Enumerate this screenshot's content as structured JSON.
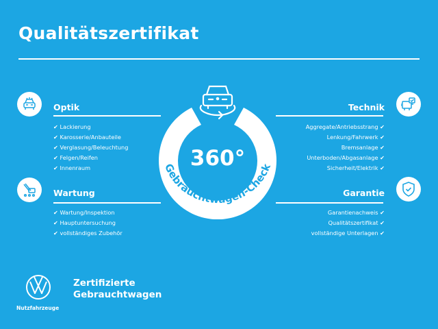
{
  "title": "Qualitätszertifikat",
  "colors": {
    "background": "#1ca6e3",
    "foreground": "#ffffff"
  },
  "badge": {
    "value": "360°",
    "arc_text": "Gebrauchtwagen-Check",
    "icon": "car-rotate-icon"
  },
  "sections": {
    "optik": {
      "title": "Optik",
      "icon": "car-front-icon",
      "items": [
        "Lackierung",
        "Karosserie/Anbauteile",
        "Verglasung/Beleuchtung",
        "Felgen/Reifen",
        "Innenraum"
      ]
    },
    "wartung": {
      "title": "Wartung",
      "icon": "maintenance-icon",
      "items": [
        "Wartung/Inspektion",
        "Hauptuntersuchung",
        "vollständiges Zubehör"
      ]
    },
    "technik": {
      "title": "Technik",
      "icon": "engine-check-icon",
      "items": [
        "Aggregate/Antriebsstrang",
        "Lenkung/Fahrwerk",
        "Bremsanlage",
        "Unterboden/Abgasanlage",
        "Sicherheit/Elektrik"
      ]
    },
    "garantie": {
      "title": "Garantie",
      "icon": "shield-check-icon",
      "items": [
        "Garantienachweis",
        "Qualitätszertifikat",
        "vollständige Unterlagen"
      ]
    }
  },
  "check_mark": "✔",
  "footer": {
    "line1": "Zertifizierte",
    "line2": "Gebrauchtwagen",
    "brand_sub": "Nutzfahrzeuge",
    "logo": "VW"
  }
}
